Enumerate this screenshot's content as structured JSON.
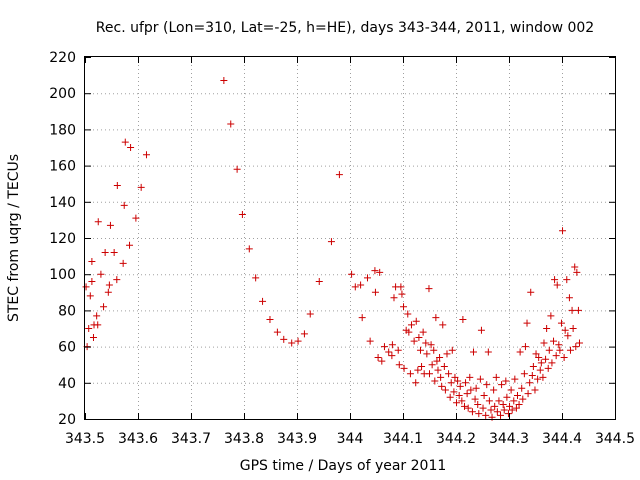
{
  "chart_data": {
    "type": "scatter",
    "title": "Rec. ufpr (Lon=310, Lat=-25, h=HE), days 343-344, 2011, window 002",
    "xlabel": "GPS time / Days of year 2011",
    "ylabel": "STEC from uqrg / TECUs",
    "xlim": [
      343.5,
      344.5
    ],
    "ylim": [
      20,
      220
    ],
    "x_ticks": [
      343.5,
      343.6,
      343.7,
      343.8,
      343.9,
      344,
      344.1,
      344.2,
      344.3,
      344.4,
      344.5
    ],
    "x_tick_labels": [
      "343.5",
      "343.6",
      "343.7",
      "343.8",
      "343.9",
      "344",
      "344.1",
      "344.2",
      "344.3",
      "344.4",
      "344.5"
    ],
    "y_ticks": [
      20,
      40,
      60,
      80,
      100,
      120,
      140,
      160,
      180,
      200,
      220
    ],
    "y_tick_labels": [
      "20",
      "40",
      "60",
      "80",
      "100",
      "120",
      "140",
      "160",
      "180",
      "200",
      "220"
    ],
    "grid": true,
    "marker": "+",
    "color": "#cc0000",
    "points": [
      [
        343.502,
        93
      ],
      [
        343.504,
        60
      ],
      [
        343.507,
        70
      ],
      [
        343.51,
        88
      ],
      [
        343.513,
        107
      ],
      [
        343.513,
        96
      ],
      [
        343.516,
        65
      ],
      [
        343.517,
        72
      ],
      [
        343.522,
        77
      ],
      [
        343.524,
        72
      ],
      [
        343.525,
        129
      ],
      [
        343.53,
        100
      ],
      [
        343.535,
        82
      ],
      [
        343.538,
        112
      ],
      [
        343.544,
        90
      ],
      [
        343.546,
        94
      ],
      [
        343.548,
        127
      ],
      [
        343.555,
        112
      ],
      [
        343.56,
        97
      ],
      [
        343.561,
        149
      ],
      [
        343.572,
        106
      ],
      [
        343.574,
        138
      ],
      [
        343.576,
        173
      ],
      [
        343.584,
        116
      ],
      [
        343.586,
        170
      ],
      [
        343.596,
        131
      ],
      [
        343.606,
        148
      ],
      [
        343.616,
        166
      ],
      [
        343.762,
        207
      ],
      [
        343.775,
        183
      ],
      [
        343.787,
        158
      ],
      [
        343.797,
        133
      ],
      [
        343.81,
        114
      ],
      [
        343.822,
        98
      ],
      [
        343.835,
        85
      ],
      [
        343.849,
        75
      ],
      [
        343.863,
        68
      ],
      [
        343.875,
        64
      ],
      [
        343.89,
        62
      ],
      [
        343.902,
        63
      ],
      [
        343.914,
        67
      ],
      [
        343.925,
        78
      ],
      [
        343.942,
        96
      ],
      [
        343.965,
        118
      ],
      [
        343.98,
        155
      ],
      [
        344.003,
        100
      ],
      [
        344.01,
        93
      ],
      [
        344.02,
        94
      ],
      [
        344.023,
        76
      ],
      [
        344.033,
        98
      ],
      [
        344.038,
        63
      ],
      [
        344.047,
        102
      ],
      [
        344.048,
        90
      ],
      [
        344.053,
        54
      ],
      [
        344.056,
        101
      ],
      [
        344.06,
        52
      ],
      [
        344.065,
        60
      ],
      [
        344.073,
        57
      ],
      [
        344.079,
        55
      ],
      [
        344.08,
        61
      ],
      [
        344.083,
        87
      ],
      [
        344.086,
        93
      ],
      [
        344.091,
        58
      ],
      [
        344.093,
        50
      ],
      [
        344.096,
        93
      ],
      [
        344.098,
        89
      ],
      [
        344.101,
        82
      ],
      [
        344.102,
        48
      ],
      [
        344.106,
        69
      ],
      [
        344.109,
        78
      ],
      [
        344.111,
        68
      ],
      [
        344.114,
        45
      ],
      [
        344.116,
        72
      ],
      [
        344.121,
        63
      ],
      [
        344.124,
        40
      ],
      [
        344.125,
        74
      ],
      [
        344.128,
        47
      ],
      [
        344.13,
        65
      ],
      [
        344.133,
        58
      ],
      [
        344.135,
        49
      ],
      [
        344.138,
        68
      ],
      [
        344.14,
        45
      ],
      [
        344.143,
        62
      ],
      [
        344.145,
        56
      ],
      [
        344.149,
        92
      ],
      [
        344.15,
        45
      ],
      [
        344.153,
        61
      ],
      [
        344.155,
        50
      ],
      [
        344.158,
        58
      ],
      [
        344.16,
        41
      ],
      [
        344.162,
        76
      ],
      [
        344.164,
        52
      ],
      [
        344.166,
        47
      ],
      [
        344.169,
        54
      ],
      [
        344.171,
        43
      ],
      [
        344.173,
        38
      ],
      [
        344.175,
        72
      ],
      [
        344.178,
        49
      ],
      [
        344.18,
        36
      ],
      [
        344.183,
        56
      ],
      [
        344.186,
        45
      ],
      [
        344.189,
        32
      ],
      [
        344.191,
        40
      ],
      [
        344.193,
        58
      ],
      [
        344.196,
        35
      ],
      [
        344.198,
        43
      ],
      [
        344.201,
        29
      ],
      [
        344.203,
        41
      ],
      [
        344.206,
        33
      ],
      [
        344.208,
        38
      ],
      [
        344.211,
        30
      ],
      [
        344.213,
        75
      ],
      [
        344.216,
        27
      ],
      [
        344.218,
        40
      ],
      [
        344.221,
        34
      ],
      [
        344.223,
        26
      ],
      [
        344.226,
        43
      ],
      [
        344.228,
        36
      ],
      [
        344.231,
        24
      ],
      [
        344.233,
        57
      ],
      [
        344.236,
        31
      ],
      [
        344.238,
        37
      ],
      [
        344.241,
        28
      ],
      [
        344.243,
        23
      ],
      [
        344.246,
        42
      ],
      [
        344.248,
        69
      ],
      [
        344.251,
        26
      ],
      [
        344.253,
        33
      ],
      [
        344.256,
        22
      ],
      [
        344.258,
        39
      ],
      [
        344.261,
        57
      ],
      [
        344.263,
        30
      ],
      [
        344.266,
        25
      ],
      [
        344.268,
        21
      ],
      [
        344.271,
        36
      ],
      [
        344.273,
        27
      ],
      [
        344.276,
        43
      ],
      [
        344.278,
        24
      ],
      [
        344.281,
        30
      ],
      [
        344.284,
        22
      ],
      [
        344.286,
        39
      ],
      [
        344.289,
        28
      ],
      [
        344.291,
        25
      ],
      [
        344.294,
        41
      ],
      [
        344.296,
        32
      ],
      [
        344.299,
        23
      ],
      [
        344.301,
        27
      ],
      [
        344.304,
        36
      ],
      [
        344.306,
        25
      ],
      [
        344.309,
        30
      ],
      [
        344.311,
        42
      ],
      [
        344.314,
        26
      ],
      [
        344.316,
        33
      ],
      [
        344.319,
        28
      ],
      [
        344.321,
        57
      ],
      [
        344.324,
        37
      ],
      [
        344.326,
        31
      ],
      [
        344.329,
        45
      ],
      [
        344.331,
        60
      ],
      [
        344.334,
        73
      ],
      [
        344.336,
        34
      ],
      [
        344.339,
        40
      ],
      [
        344.341,
        90
      ],
      [
        344.344,
        44
      ],
      [
        344.346,
        49
      ],
      [
        344.349,
        36
      ],
      [
        344.351,
        56
      ],
      [
        344.354,
        42
      ],
      [
        344.356,
        54
      ],
      [
        344.359,
        47
      ],
      [
        344.361,
        51
      ],
      [
        344.364,
        43
      ],
      [
        344.366,
        62
      ],
      [
        344.369,
        53
      ],
      [
        344.371,
        70
      ],
      [
        344.374,
        48
      ],
      [
        344.376,
        58
      ],
      [
        344.379,
        77
      ],
      [
        344.381,
        51
      ],
      [
        344.384,
        63
      ],
      [
        344.386,
        97
      ],
      [
        344.389,
        55
      ],
      [
        344.391,
        94
      ],
      [
        344.394,
        61
      ],
      [
        344.396,
        58
      ],
      [
        344.399,
        73
      ],
      [
        344.401,
        124
      ],
      [
        344.404,
        54
      ],
      [
        344.406,
        69
      ],
      [
        344.409,
        97
      ],
      [
        344.411,
        66
      ],
      [
        344.414,
        87
      ],
      [
        344.416,
        58
      ],
      [
        344.419,
        80
      ],
      [
        344.421,
        70
      ],
      [
        344.424,
        104
      ],
      [
        344.426,
        60
      ],
      [
        344.428,
        101
      ],
      [
        344.431,
        80
      ],
      [
        344.433,
        62
      ]
    ]
  }
}
